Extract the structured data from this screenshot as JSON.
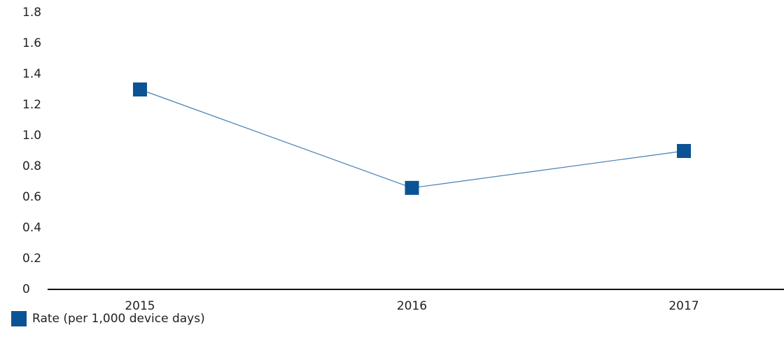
{
  "chart_data": {
    "type": "line",
    "categories": [
      "2015",
      "2016",
      "2017"
    ],
    "series": [
      {
        "name": "Rate (per 1,000 device days)",
        "color": "#0b5394",
        "values": [
          1.3,
          0.66,
          0.9
        ]
      }
    ],
    "ylim": [
      0,
      1.8
    ],
    "yticks": [
      0,
      0.2,
      0.4,
      0.6,
      0.8,
      {
        "value": 1,
        "label": "1.0"
      },
      1.2,
      1.4,
      1.6,
      1.8
    ],
    "grid": false,
    "legend": "bottom-left"
  }
}
